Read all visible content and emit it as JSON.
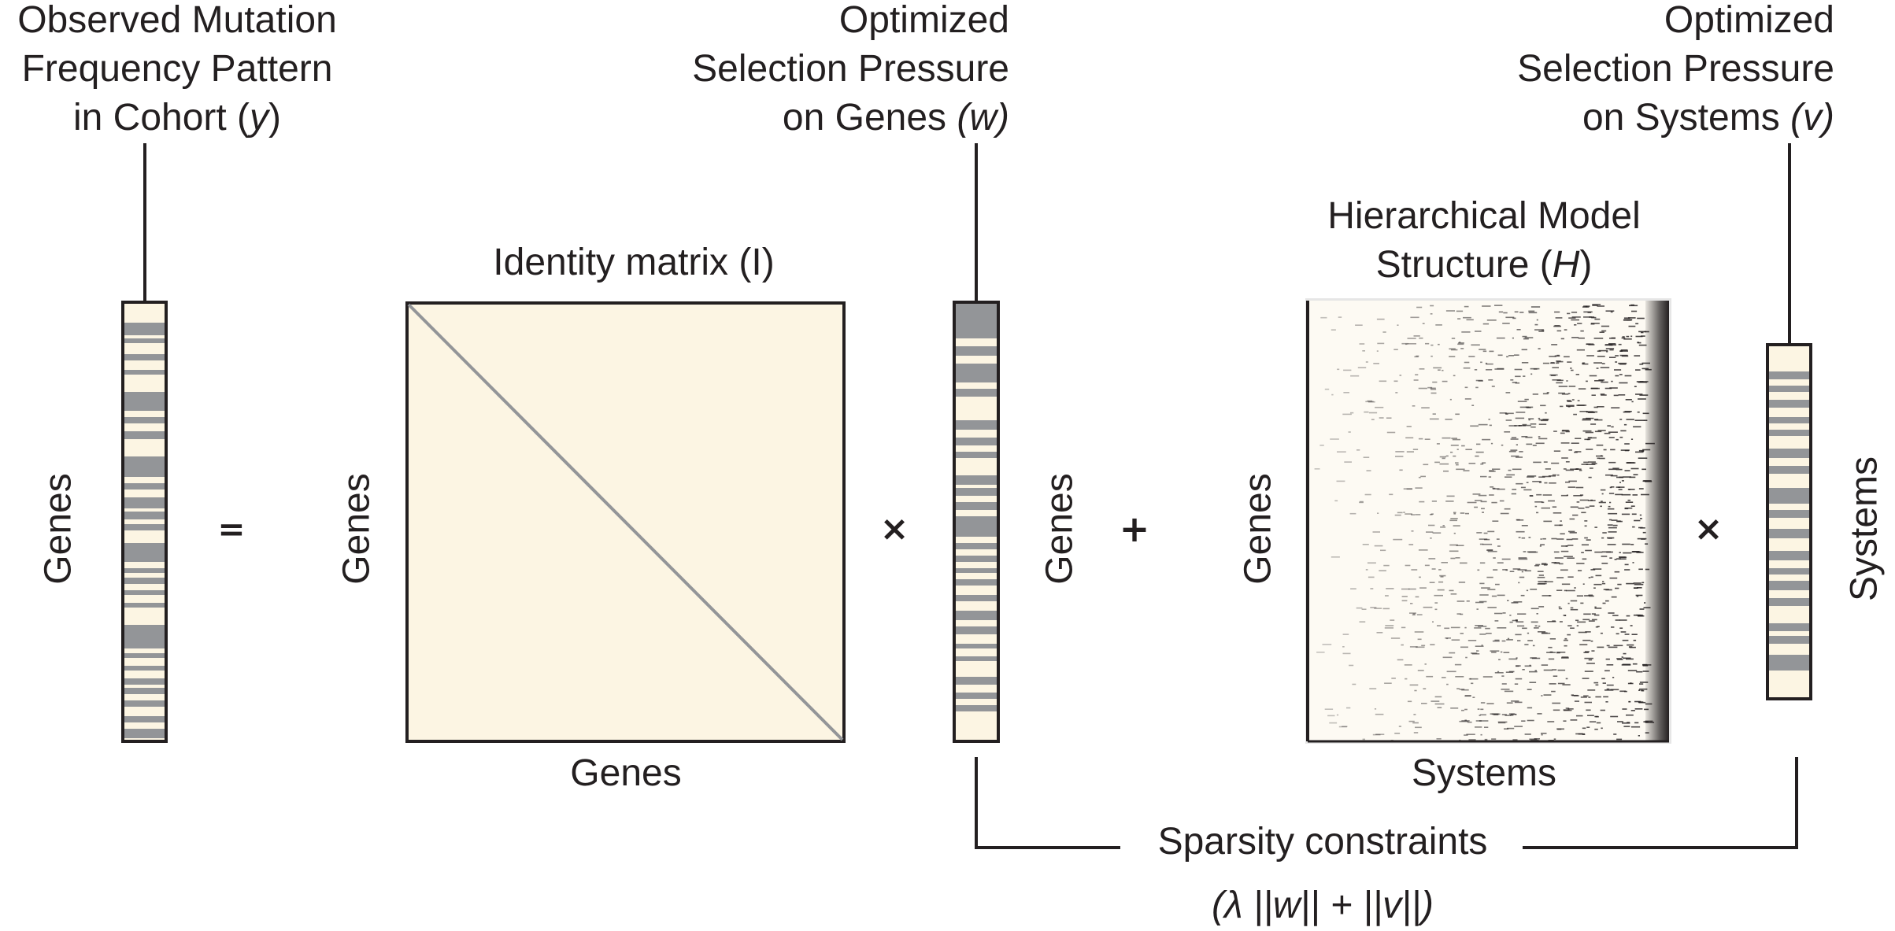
{
  "labels": {
    "y_title": [
      "Observed Mutation",
      "Frequency Pattern",
      "in Cohort ("
    ],
    "y_symbol": "y",
    "w_title": [
      "Optimized",
      "Selection Pressure",
      "on Genes "
    ],
    "w_symbol": "(w)",
    "v_title": [
      "Optimized",
      "Selection Pressure",
      "on Systems "
    ],
    "v_symbol": "(v)",
    "identity_title": "Identity matrix (I)",
    "h_title": [
      "Hierarchical Model",
      "Structure ("
    ],
    "h_symbol": "H",
    "genes": "Genes",
    "systems": "Systems",
    "sparsity": "Sparsity constraints",
    "formula": [
      "(λ ||",
      "w",
      "|| + ||",
      "v",
      "||)"
    ]
  },
  "operators": {
    "equals": "=",
    "times": "×",
    "plus": "+"
  },
  "colors": {
    "ink": "#231f20",
    "cream": "#fcf5e3",
    "band_gray": "#939598",
    "diagonal": "#939598",
    "matrix_bg": "#fdfaf3"
  }
}
